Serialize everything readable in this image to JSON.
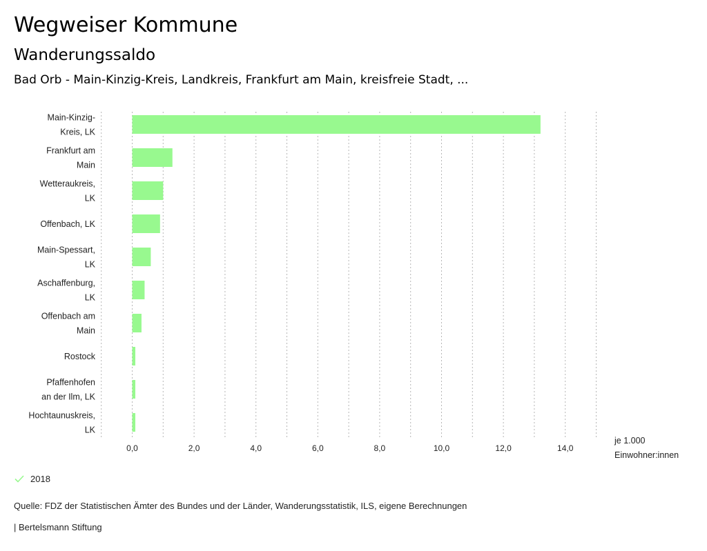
{
  "header": {
    "title": "Wegweiser Kommune",
    "subtitle": "Wanderungssaldo",
    "description": "Bad Orb - Main-Kinzig-Kreis, Landkreis, Frankfurt am Main, kreisfreie Stadt, ..."
  },
  "chart_data": {
    "type": "bar",
    "orientation": "horizontal",
    "title": "Wanderungssaldo",
    "categories": [
      [
        "Main-Kinzig-",
        "Kreis, LK"
      ],
      [
        "Frankfurt am",
        "Main"
      ],
      [
        "Wetteraukreis,",
        "LK"
      ],
      [
        "Offenbach, LK"
      ],
      [
        "Main-Spessart,",
        "LK"
      ],
      [
        "Aschaffenburg,",
        "LK"
      ],
      [
        "Offenbach am",
        "Main"
      ],
      [
        "Rostock"
      ],
      [
        "Pfaffenhofen",
        "an der Ilm, LK"
      ],
      [
        "Hochtaunuskreis,",
        "LK"
      ]
    ],
    "series": [
      {
        "name": "2018",
        "color": "#98f98f",
        "values": [
          13.2,
          1.3,
          1.0,
          0.9,
          0.6,
          0.4,
          0.3,
          0.1,
          0.1,
          0.1
        ]
      }
    ],
    "xlim": [
      -1,
      15
    ],
    "xticks": [
      0,
      2,
      4,
      6,
      8,
      10,
      12,
      14
    ],
    "xtick_labels": [
      "0,0",
      "2,0",
      "4,0",
      "6,0",
      "8,0",
      "10,0",
      "12,0",
      "14,0"
    ],
    "gridlines": [
      -1,
      0,
      1,
      2,
      3,
      4,
      5,
      6,
      7,
      8,
      9,
      10,
      11,
      12,
      13,
      14,
      15
    ],
    "grid": true,
    "xlabel": [
      "je 1.000",
      "Einwohner:innen"
    ],
    "legend_position": "bottom-left"
  },
  "legend": {
    "label": "2018",
    "color": "#98f98f"
  },
  "footer": {
    "source": "Quelle: FDZ der Statistischen Ämter des Bundes und der Länder, Wanderungsstatistik, ILS, eigene Berechnungen",
    "credit": "| Bertelsmann Stiftung"
  }
}
